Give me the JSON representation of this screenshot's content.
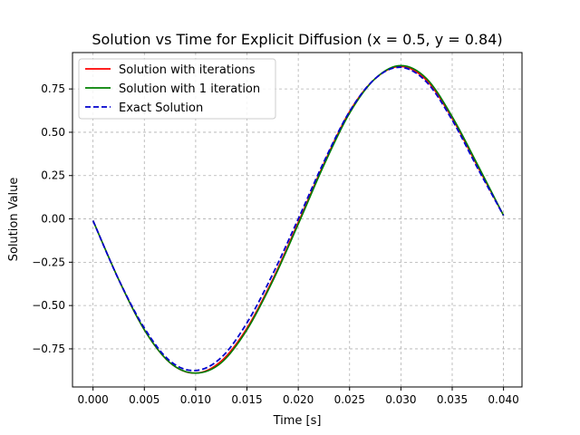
{
  "chart_data": {
    "type": "line",
    "title": "Solution vs Time for Explicit Diffusion (x = 0.5, y = 0.84)",
    "xlabel": "Time [s]",
    "ylabel": "Solution Value",
    "xlim": [
      -0.002,
      0.0418
    ],
    "ylim": [
      -0.97,
      0.96
    ],
    "x_ticks": [
      0.0,
      0.005,
      0.01,
      0.015,
      0.02,
      0.025,
      0.03,
      0.035,
      0.04
    ],
    "x_tick_labels": [
      "0.000",
      "0.005",
      "0.010",
      "0.015",
      "0.020",
      "0.025",
      "0.030",
      "0.035",
      "0.040"
    ],
    "y_ticks": [
      -0.75,
      -0.5,
      -0.25,
      0.0,
      0.25,
      0.5,
      0.75
    ],
    "y_tick_labels": [
      "−0.75",
      "−0.50",
      "−0.25",
      "0.00",
      "0.25",
      "0.50",
      "0.75"
    ],
    "grid": true,
    "legend_position": "top-left",
    "x": [
      0.0,
      0.0025,
      0.005,
      0.0075,
      0.01,
      0.0125,
      0.015,
      0.0175,
      0.02,
      0.0225,
      0.025,
      0.0275,
      0.03,
      0.0325,
      0.035,
      0.0375,
      0.04
    ],
    "series": [
      {
        "name": "Solution with iterations",
        "color": "#ff0000",
        "dash": "solid",
        "values": [
          -0.01,
          -0.35,
          -0.64,
          -0.83,
          -0.89,
          -0.82,
          -0.63,
          -0.35,
          -0.02,
          0.32,
          0.62,
          0.81,
          0.88,
          0.8,
          0.58,
          0.3,
          0.02
        ]
      },
      {
        "name": "Solution with 1 iteration",
        "color": "#008000",
        "dash": "solid",
        "values": [
          -0.01,
          -0.35,
          -0.64,
          -0.83,
          -0.89,
          -0.83,
          -0.64,
          -0.36,
          -0.03,
          0.31,
          0.61,
          0.81,
          0.885,
          0.81,
          0.59,
          0.31,
          0.02
        ]
      },
      {
        "name": "Exact Solution",
        "color": "#0000cd",
        "dash": "dashed",
        "values": [
          -0.01,
          -0.35,
          -0.63,
          -0.82,
          -0.875,
          -0.8,
          -0.6,
          -0.32,
          0.0,
          0.33,
          0.62,
          0.81,
          0.875,
          0.79,
          0.57,
          0.29,
          0.02
        ]
      }
    ]
  }
}
